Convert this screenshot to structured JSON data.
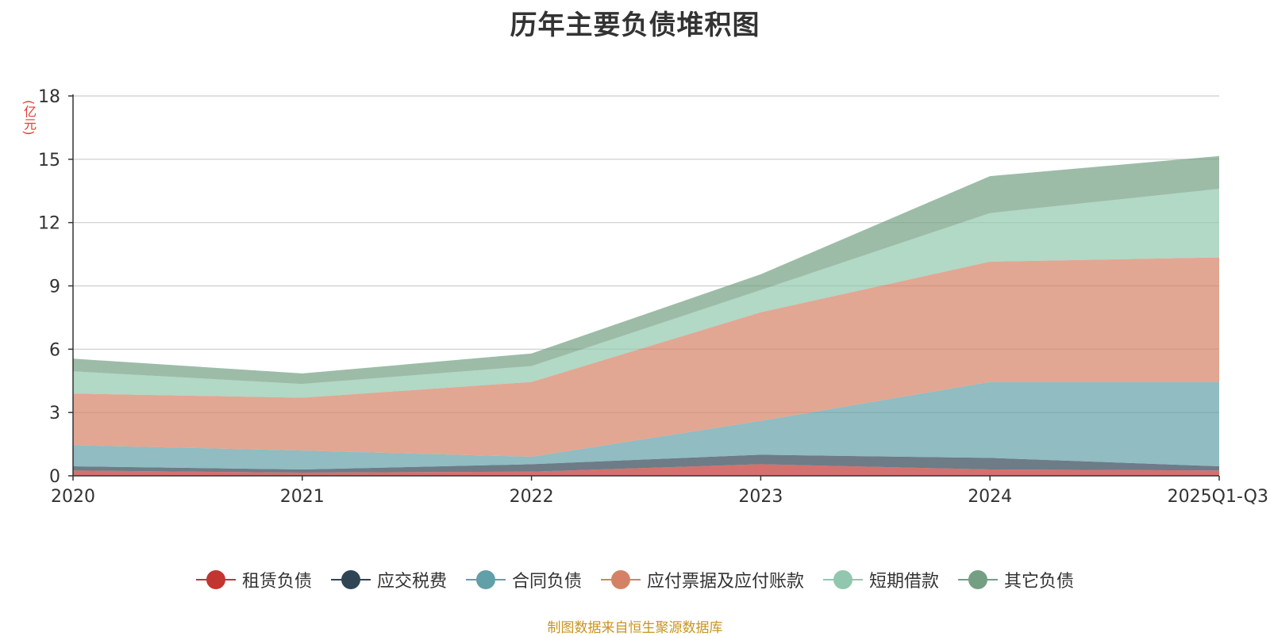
{
  "chart_data": {
    "type": "area",
    "title": "历年主要负债堆积图",
    "ylabel": "(亿元)",
    "xlabel": "",
    "categories": [
      "2020",
      "2021",
      "2022",
      "2023",
      "2024",
      "2025Q1-Q3"
    ],
    "ylim": [
      0,
      18
    ],
    "yticks": [
      0,
      3,
      6,
      9,
      12,
      15,
      18
    ],
    "grid": true,
    "stacked": true,
    "legend_position": "bottom",
    "series": [
      {
        "name": "租赁负债",
        "color": "#c23531",
        "values": [
          0.25,
          0.15,
          0.2,
          0.55,
          0.3,
          0.25
        ]
      },
      {
        "name": "应交税费",
        "color": "#2f4554",
        "values": [
          0.2,
          0.15,
          0.35,
          0.45,
          0.55,
          0.2
        ]
      },
      {
        "name": "合同负债",
        "color": "#61a0a8",
        "values": [
          1.0,
          0.9,
          0.35,
          1.6,
          3.6,
          4.0
        ]
      },
      {
        "name": "应付票据及应付账款",
        "color": "#d48265",
        "values": [
          2.45,
          2.5,
          3.55,
          5.15,
          5.7,
          5.9
        ]
      },
      {
        "name": "短期借款",
        "color": "#91c7ae",
        "values": [
          1.05,
          0.65,
          0.75,
          1.05,
          2.3,
          3.25
        ]
      },
      {
        "name": "其它负债",
        "color": "#749f83",
        "values": [
          0.6,
          0.5,
          0.6,
          0.75,
          1.75,
          1.55
        ]
      }
    ]
  },
  "footer": {
    "source": "制图数据来自恒生聚源数据库"
  }
}
